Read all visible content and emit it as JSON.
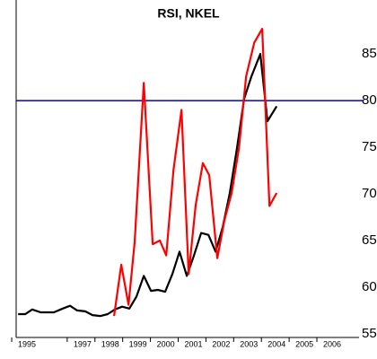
{
  "chart_data": {
    "type": "line",
    "title": "RSI, NKEL",
    "xlim": [
      1994.61,
      2006.97
    ],
    "xticks": [
      1995,
      1997,
      1998,
      1999,
      2000,
      2001,
      2002,
      2003,
      2004,
      2005,
      2006
    ],
    "ylim": [
      54.6,
      90.6
    ],
    "yticks": [
      55,
      60,
      65,
      70,
      75,
      80,
      85
    ],
    "hline": {
      "value": 80,
      "color": "#0000c0"
    },
    "series": [
      {
        "color": "#000000",
        "x": [
          1994.68,
          1994.94,
          1995.19,
          1995.49,
          1995.97,
          1996.29,
          1996.55,
          1996.81,
          1997.1,
          1997.36,
          1997.65,
          1997.91,
          1998.17,
          1998.43,
          1998.69,
          1998.95,
          1999.21,
          1999.47,
          1999.72,
          1999.98,
          2000.24,
          2000.5,
          2000.76,
          2001.02,
          2001.28,
          2001.54,
          2001.8,
          2002.06,
          2002.31,
          2002.57,
          2002.83,
          2003.09,
          2003.41,
          2003.67,
          2004.0
        ],
        "values": [
          57.1,
          57.1,
          57.6,
          57.3,
          57.3,
          57.7,
          58.0,
          57.5,
          57.4,
          57.0,
          56.9,
          57.1,
          57.6,
          57.9,
          57.7,
          59.0,
          61.2,
          59.6,
          59.7,
          59.5,
          61.4,
          63.8,
          61.2,
          63.4,
          65.8,
          65.6,
          63.8,
          66.5,
          70.1,
          74.9,
          80.2,
          82.6,
          85.0,
          77.8,
          79.4
        ]
      },
      {
        "color": "#ff0000",
        "x": [
          1998.14,
          1998.4,
          1998.66,
          1998.88,
          1999.21,
          1999.53,
          1999.79,
          2000.02,
          2000.28,
          2000.57,
          2000.83,
          2001.08,
          2001.34,
          2001.57,
          2001.86,
          2002.12,
          2002.38,
          2002.64,
          2002.9,
          2003.19,
          2003.48,
          2003.74,
          2004.0
        ],
        "values": [
          56.9,
          62.4,
          58.1,
          64.8,
          81.9,
          64.6,
          65.0,
          63.4,
          72.5,
          79.0,
          61.4,
          68.8,
          73.3,
          72.0,
          63.1,
          67.2,
          70.1,
          74.9,
          82.6,
          86.2,
          87.7,
          68.7,
          70.1
        ]
      }
    ]
  }
}
